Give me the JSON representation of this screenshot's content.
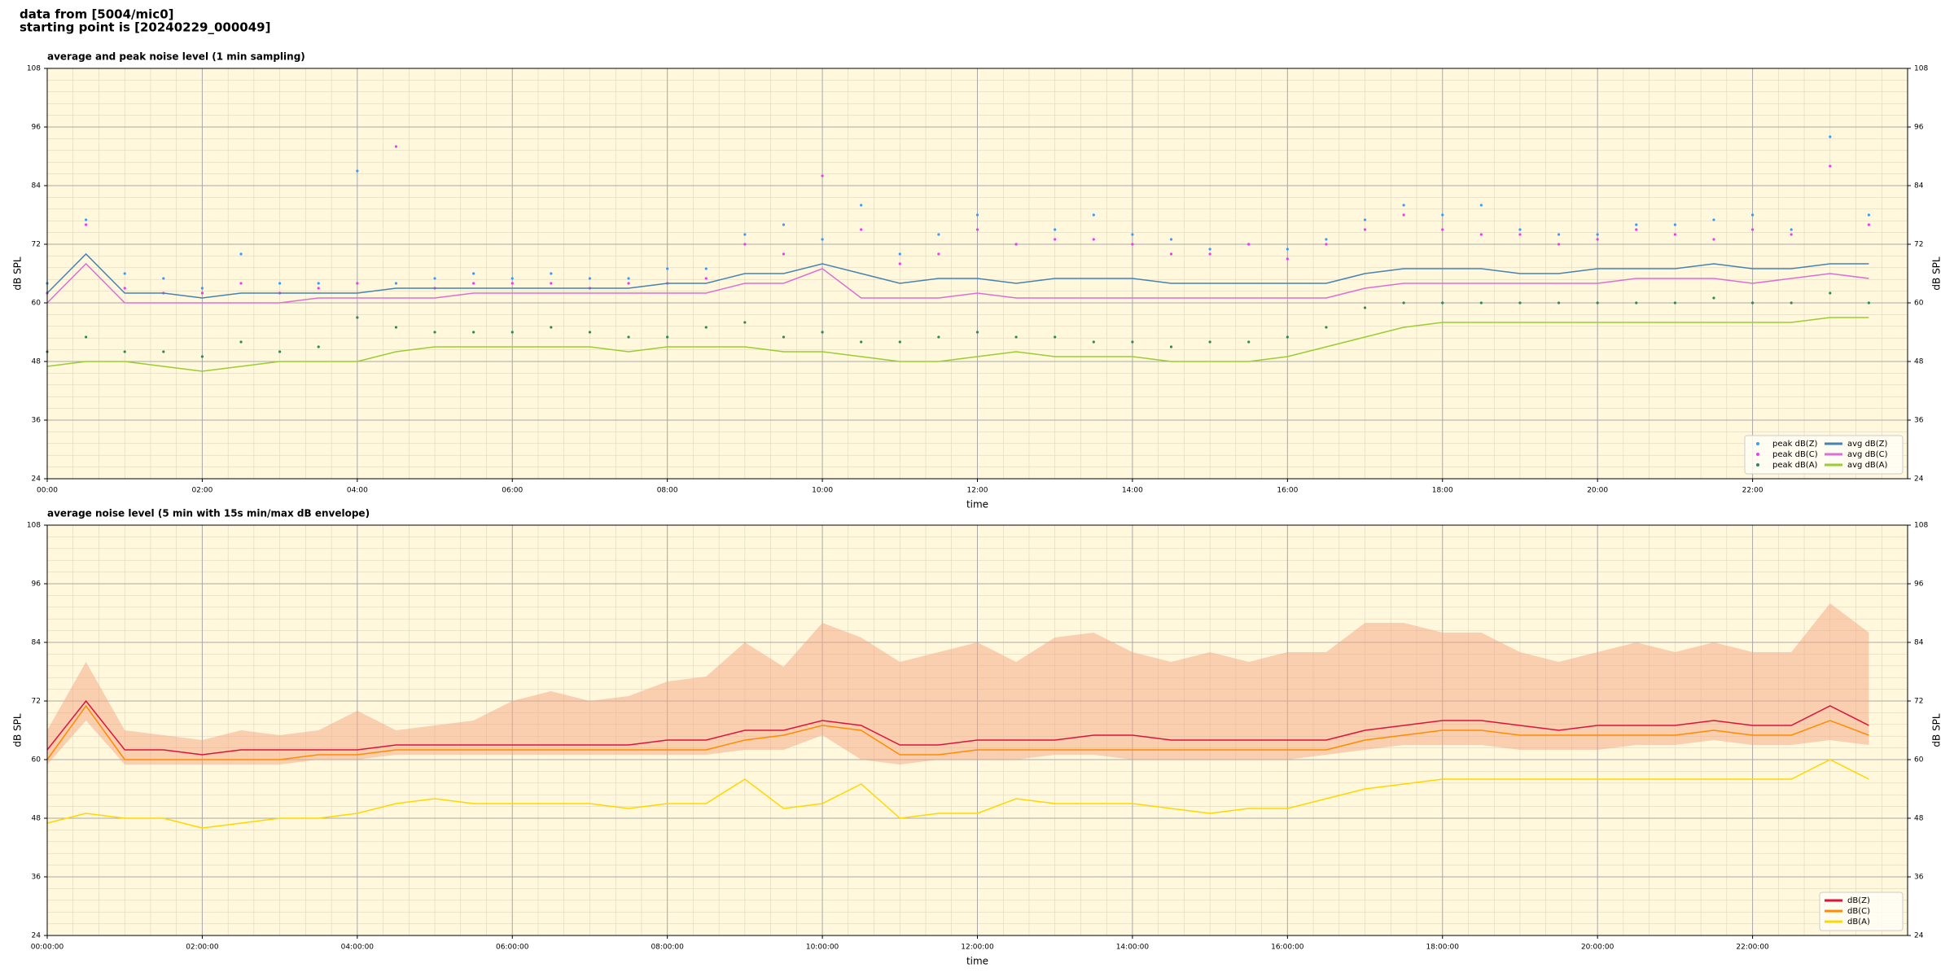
{
  "header": {
    "line1": "data from [5004/mic0]",
    "line2": "starting point is [20240229_000049]"
  },
  "chart_data": [
    {
      "type": "line",
      "title": "average and peak noise level (1 min sampling)",
      "xlabel": "time",
      "ylabel": "dB SPL",
      "y2label": "dB SPL",
      "background": "#fff8dc",
      "grid": true,
      "legend": "lower right",
      "legend_columns": 2,
      "xlim": [
        0,
        1440
      ],
      "ylim": [
        24,
        108
      ],
      "y2lim": [
        24,
        108
      ],
      "xticks": [
        {
          "value": 0,
          "label": "00:00"
        },
        {
          "value": 120,
          "label": "02:00"
        },
        {
          "value": 240,
          "label": "04:00"
        },
        {
          "value": 360,
          "label": "06:00"
        },
        {
          "value": 480,
          "label": "08:00"
        },
        {
          "value": 600,
          "label": "10:00"
        },
        {
          "value": 720,
          "label": "12:00"
        },
        {
          "value": 840,
          "label": "14:00"
        },
        {
          "value": 960,
          "label": "16:00"
        },
        {
          "value": 1080,
          "label": "18:00"
        },
        {
          "value": 1200,
          "label": "20:00"
        },
        {
          "value": 1320,
          "label": "22:00"
        }
      ],
      "yticks": [
        24,
        36,
        48,
        60,
        72,
        84,
        96,
        108
      ],
      "y2ticks": [
        24,
        36,
        48,
        60,
        72,
        84,
        96,
        108
      ],
      "x": [
        0,
        30,
        60,
        90,
        120,
        150,
        180,
        210,
        240,
        270,
        300,
        330,
        360,
        390,
        420,
        450,
        480,
        510,
        540,
        570,
        600,
        630,
        660,
        690,
        720,
        750,
        780,
        810,
        840,
        870,
        900,
        930,
        960,
        990,
        1020,
        1050,
        1080,
        1110,
        1140,
        1170,
        1200,
        1230,
        1260,
        1290,
        1320,
        1350,
        1380,
        1410
      ],
      "series": [
        {
          "name": "peak dB(Z)",
          "type": "scatter",
          "color": "#3a9bff",
          "values": [
            64,
            77,
            66,
            65,
            63,
            70,
            64,
            64,
            87,
            64,
            65,
            66,
            65,
            66,
            65,
            65,
            67,
            67,
            74,
            76,
            73,
            80,
            70,
            74,
            78,
            72,
            75,
            78,
            74,
            73,
            71,
            72,
            71,
            73,
            77,
            80,
            78,
            80,
            75,
            74,
            74,
            76,
            76,
            77,
            78,
            75,
            94,
            78
          ]
        },
        {
          "name": "peak dB(C)",
          "type": "scatter",
          "color": "#f03cf0",
          "values": [
            62,
            76,
            63,
            62,
            62,
            64,
            62,
            63,
            64,
            92,
            63,
            64,
            64,
            64,
            63,
            64,
            64,
            65,
            72,
            70,
            86,
            75,
            68,
            70,
            75,
            72,
            73,
            73,
            72,
            70,
            70,
            72,
            69,
            72,
            75,
            78,
            75,
            74,
            74,
            72,
            73,
            75,
            74,
            73,
            75,
            74,
            88,
            76
          ]
        },
        {
          "name": "peak dB(A)",
          "type": "scatter",
          "color": "#2e8b57",
          "values": [
            50,
            53,
            50,
            50,
            49,
            52,
            50,
            51,
            57,
            55,
            54,
            54,
            54,
            55,
            54,
            53,
            53,
            55,
            56,
            53,
            54,
            52,
            52,
            53,
            54,
            53,
            53,
            52,
            52,
            51,
            52,
            52,
            53,
            55,
            59,
            60,
            60,
            60,
            60,
            60,
            60,
            60,
            60,
            61,
            60,
            60,
            62,
            60
          ]
        },
        {
          "name": "avg dB(Z)",
          "type": "line",
          "color": "#4682b4",
          "values": [
            62,
            70,
            62,
            62,
            61,
            62,
            62,
            62,
            62,
            63,
            63,
            63,
            63,
            63,
            63,
            63,
            64,
            64,
            66,
            66,
            68,
            66,
            64,
            65,
            65,
            64,
            65,
            65,
            65,
            64,
            64,
            64,
            64,
            64,
            66,
            67,
            67,
            67,
            66,
            66,
            67,
            67,
            67,
            68,
            67,
            67,
            68,
            68
          ]
        },
        {
          "name": "avg dB(C)",
          "type": "line",
          "color": "#da70d6",
          "values": [
            60,
            68,
            60,
            60,
            60,
            60,
            60,
            61,
            61,
            61,
            61,
            62,
            62,
            62,
            62,
            62,
            62,
            62,
            64,
            64,
            67,
            61,
            61,
            61,
            62,
            61,
            61,
            61,
            61,
            61,
            61,
            61,
            61,
            61,
            63,
            64,
            64,
            64,
            64,
            64,
            64,
            65,
            65,
            65,
            64,
            65,
            66,
            65
          ]
        },
        {
          "name": "avg dB(A)",
          "type": "line",
          "color": "#9acd32",
          "values": [
            47,
            48,
            48,
            47,
            46,
            47,
            48,
            48,
            48,
            50,
            51,
            51,
            51,
            51,
            51,
            50,
            51,
            51,
            51,
            50,
            50,
            49,
            48,
            48,
            49,
            50,
            49,
            49,
            49,
            48,
            48,
            48,
            49,
            51,
            53,
            55,
            56,
            56,
            56,
            56,
            56,
            56,
            56,
            56,
            56,
            56,
            57,
            57
          ]
        }
      ]
    },
    {
      "type": "line",
      "title": "average noise level (5 min with 15s min/max dB envelope)",
      "xlabel": "time",
      "ylabel": "dB SPL",
      "y2label": "dB SPL",
      "background": "#fff8dc",
      "grid": true,
      "legend": "lower right",
      "legend_columns": 1,
      "xlim": [
        0,
        1440
      ],
      "ylim": [
        24,
        108
      ],
      "y2lim": [
        24,
        108
      ],
      "xticks": [
        {
          "value": 0,
          "label": "00:00:00"
        },
        {
          "value": 120,
          "label": "02:00:00"
        },
        {
          "value": 240,
          "label": "04:00:00"
        },
        {
          "value": 360,
          "label": "06:00:00"
        },
        {
          "value": 480,
          "label": "08:00:00"
        },
        {
          "value": 600,
          "label": "10:00:00"
        },
        {
          "value": 720,
          "label": "12:00:00"
        },
        {
          "value": 840,
          "label": "14:00:00"
        },
        {
          "value": 960,
          "label": "16:00:00"
        },
        {
          "value": 1080,
          "label": "18:00:00"
        },
        {
          "value": 1200,
          "label": "20:00:00"
        },
        {
          "value": 1320,
          "label": "22:00:00"
        }
      ],
      "yticks": [
        24,
        36,
        48,
        60,
        72,
        84,
        96,
        108
      ],
      "y2ticks": [
        24,
        36,
        48,
        60,
        72,
        84,
        96,
        108
      ],
      "x": [
        0,
        30,
        60,
        90,
        120,
        150,
        180,
        210,
        240,
        270,
        300,
        330,
        360,
        390,
        420,
        450,
        480,
        510,
        540,
        570,
        600,
        630,
        660,
        690,
        720,
        750,
        780,
        810,
        840,
        870,
        900,
        930,
        960,
        990,
        1020,
        1050,
        1080,
        1110,
        1140,
        1170,
        1200,
        1230,
        1260,
        1290,
        1320,
        1350,
        1380,
        1410
      ],
      "envelope": {
        "color": "#f4a582",
        "lower": [
          59,
          68,
          59,
          59,
          59,
          59,
          59,
          60,
          60,
          61,
          61,
          61,
          61,
          61,
          61,
          61,
          61,
          61,
          62,
          62,
          65,
          60,
          59,
          60,
          60,
          60,
          61,
          61,
          60,
          60,
          60,
          60,
          60,
          61,
          62,
          63,
          63,
          63,
          62,
          62,
          62,
          63,
          63,
          64,
          63,
          63,
          64,
          63
        ],
        "upper": [
          66,
          80,
          66,
          65,
          64,
          66,
          65,
          66,
          70,
          66,
          67,
          68,
          72,
          74,
          72,
          73,
          76,
          77,
          84,
          79,
          88,
          85,
          80,
          82,
          84,
          80,
          85,
          86,
          82,
          80,
          82,
          80,
          82,
          82,
          88,
          88,
          86,
          86,
          82,
          80,
          82,
          84,
          82,
          84,
          82,
          82,
          92,
          86
        ]
      },
      "series": [
        {
          "name": "dB(Z)",
          "type": "line",
          "color": "#dc143c",
          "values": [
            62,
            72,
            62,
            62,
            61,
            62,
            62,
            62,
            62,
            63,
            63,
            63,
            63,
            63,
            63,
            63,
            64,
            64,
            66,
            66,
            68,
            67,
            63,
            63,
            64,
            64,
            64,
            65,
            65,
            64,
            64,
            64,
            64,
            64,
            66,
            67,
            68,
            68,
            67,
            66,
            67,
            67,
            67,
            68,
            67,
            67,
            71,
            67
          ]
        },
        {
          "name": "dB(C)",
          "type": "line",
          "color": "#ff8c00",
          "values": [
            60,
            71,
            60,
            60,
            60,
            60,
            60,
            61,
            61,
            62,
            62,
            62,
            62,
            62,
            62,
            62,
            62,
            62,
            64,
            65,
            67,
            66,
            61,
            61,
            62,
            62,
            62,
            62,
            62,
            62,
            62,
            62,
            62,
            62,
            64,
            65,
            66,
            66,
            65,
            65,
            65,
            65,
            65,
            66,
            65,
            65,
            68,
            65
          ]
        },
        {
          "name": "dB(A)",
          "type": "line",
          "color": "#ffd700",
          "values": [
            47,
            49,
            48,
            48,
            46,
            47,
            48,
            48,
            49,
            51,
            52,
            51,
            51,
            51,
            51,
            50,
            51,
            51,
            56,
            50,
            51,
            55,
            48,
            49,
            49,
            52,
            51,
            51,
            51,
            50,
            49,
            50,
            50,
            52,
            54,
            55,
            56,
            56,
            56,
            56,
            56,
            56,
            56,
            56,
            56,
            56,
            60,
            56
          ]
        }
      ]
    }
  ]
}
